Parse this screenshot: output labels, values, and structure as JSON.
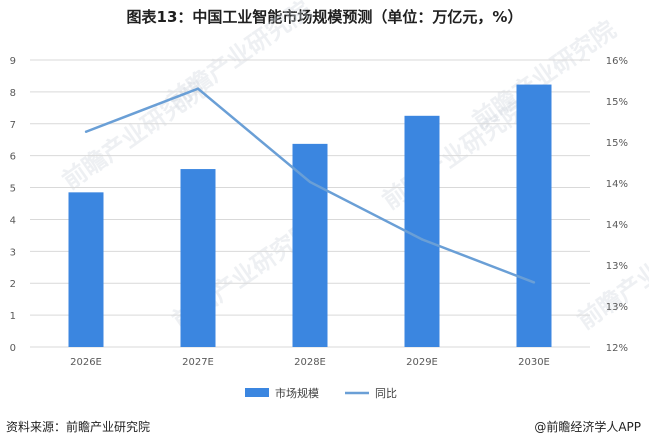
{
  "title": "图表13：中国工业智能市场规模预测（单位：万亿元，%）",
  "footer": {
    "source": "资料来源：前瞻产业研究院",
    "brand": "@前瞻经济学人APP"
  },
  "watermark": "前瞻产业研究院",
  "colors": {
    "bar": "#3b86e0",
    "line": "#6a9fd6",
    "grid": "#d9d9d9"
  },
  "chart_data": {
    "type": "bar",
    "categories": [
      "2026E",
      "2027E",
      "2028E",
      "2029E",
      "2030E"
    ],
    "series": [
      {
        "name": "市场规模",
        "type": "bar",
        "axis": "left",
        "values": [
          4.85,
          5.58,
          6.37,
          7.25,
          8.23
        ]
      },
      {
        "name": "同比",
        "type": "line",
        "axis": "right",
        "values": [
          15.0,
          15.6,
          14.3,
          13.5,
          12.9
        ]
      }
    ],
    "left_axis": {
      "min": 0,
      "max": 9,
      "ticks": [
        "0",
        "1",
        "2",
        "3",
        "4",
        "5",
        "6",
        "7",
        "8",
        "9"
      ]
    },
    "right_axis": {
      "min": 12,
      "max": 16,
      "ticks": [
        "12%",
        "13%",
        "13%",
        "14%",
        "14%",
        "15%",
        "15%",
        "16%"
      ]
    },
    "grid": true,
    "legend_position": "bottom"
  }
}
